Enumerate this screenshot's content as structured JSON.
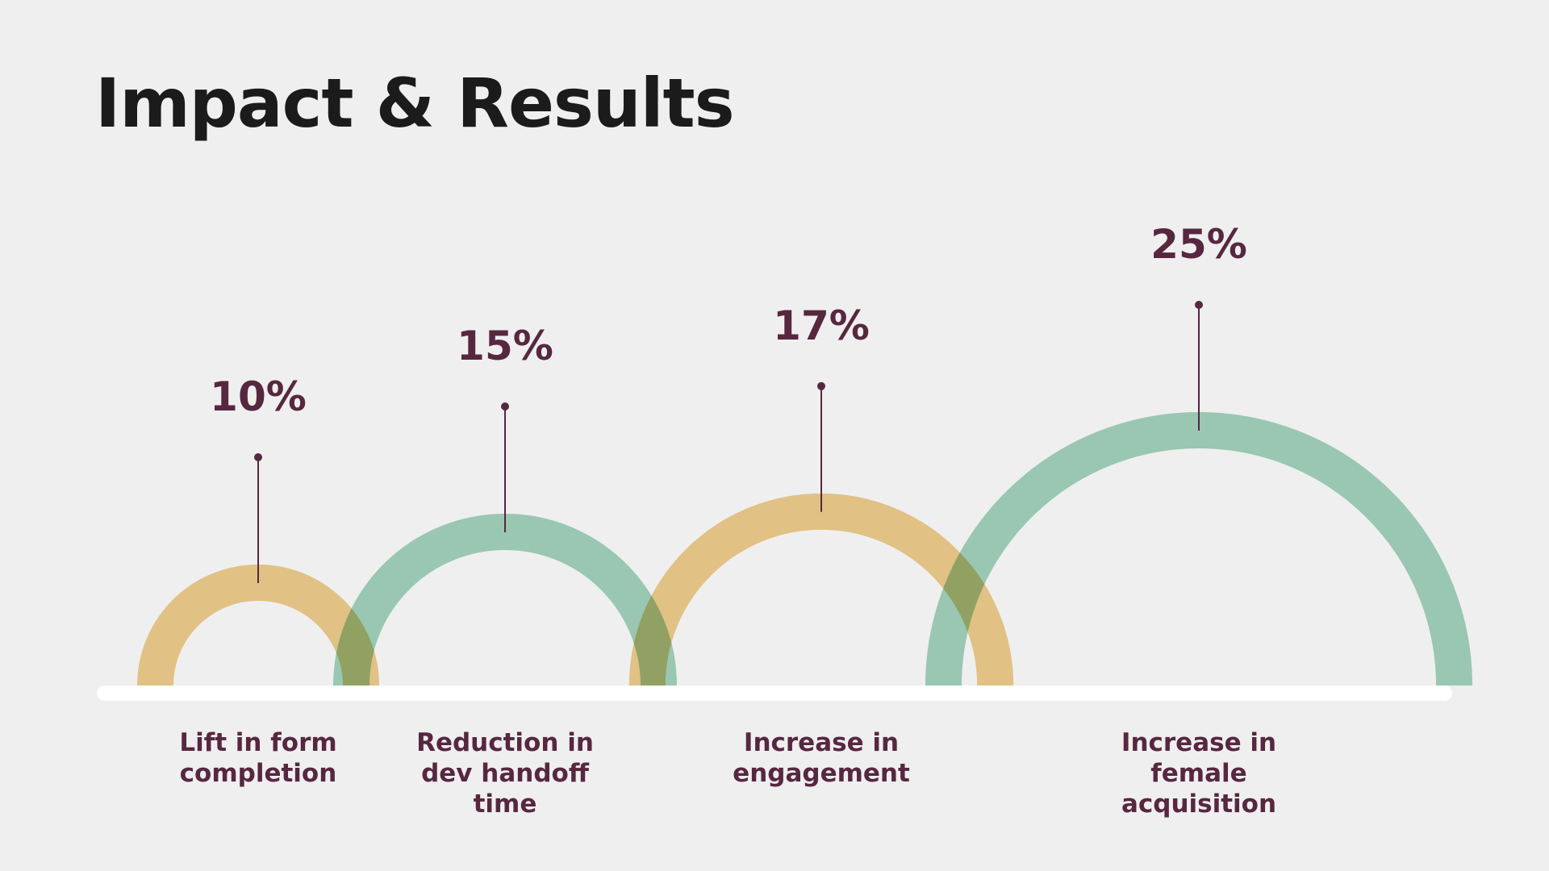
{
  "slide": {
    "title": "Impact & Results"
  },
  "colors": {
    "background": "#efefef",
    "title": "#1b1b1b",
    "label": "#572740",
    "baseline": "#ffffff",
    "arc_yellow": "#f0cd8b",
    "arc_green": "#a1d4bd"
  },
  "chart_data": {
    "type": "bar",
    "title": "",
    "categories": [
      "Lift in form\ncompletion",
      "Reduction in\ndev handoff\ntime",
      "Increase in\nengagement",
      "Increase in\nfemale\nacquisition"
    ],
    "values": [
      10,
      15,
      17,
      25
    ],
    "value_labels": [
      "10%",
      "15%",
      "17%",
      "25%"
    ],
    "unit": "%",
    "arc_colors": [
      "yellow",
      "green",
      "yellow",
      "green"
    ],
    "grid": false,
    "legend": "none"
  }
}
